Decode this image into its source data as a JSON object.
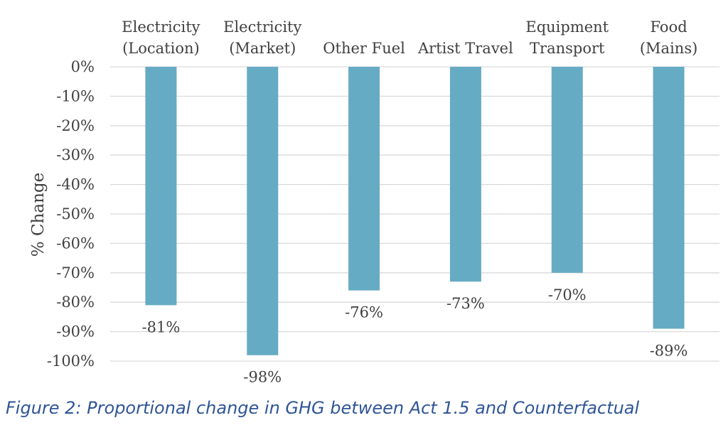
{
  "chart_data": {
    "type": "bar",
    "categories": [
      [
        "Electricity",
        "(Location)"
      ],
      [
        "Electricity",
        "(Market)"
      ],
      [
        "Other Fuel"
      ],
      [
        "Artist Travel"
      ],
      [
        "Equipment",
        "Transport"
      ],
      [
        "Food",
        "(Mains)"
      ]
    ],
    "values": [
      -81,
      -98,
      -76,
      -73,
      -70,
      -89
    ],
    "data_labels": [
      "-81%",
      "-98%",
      "-76%",
      "-73%",
      "-70%",
      "-89%"
    ],
    "ylabel": "% Change",
    "ylim": [
      -100,
      0
    ],
    "yticks": [
      0,
      -10,
      -20,
      -30,
      -40,
      -50,
      -60,
      -70,
      -80,
      -90,
      -100
    ],
    "ytick_labels": [
      "0%",
      "-10%",
      "-20%",
      "-30%",
      "-40%",
      "-50%",
      "-60%",
      "-70%",
      "-80%",
      "-90%",
      "-100%"
    ],
    "grid": true,
    "category_labels_position": "top",
    "bar_color": "#65abc4"
  },
  "caption": "Figure 2: Proportional change in GHG between Act 1.5 and Counterfactual"
}
